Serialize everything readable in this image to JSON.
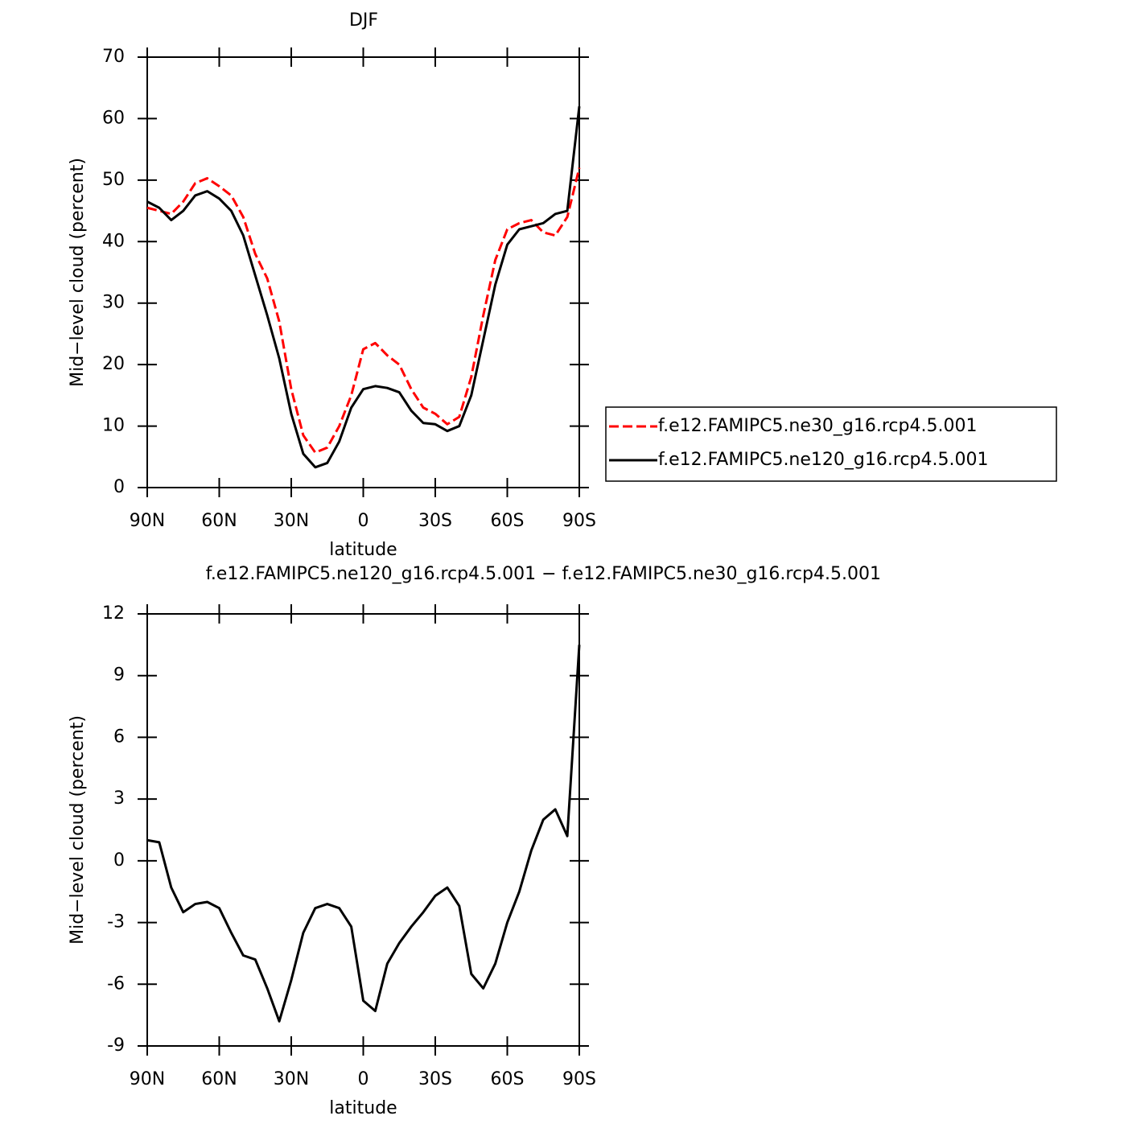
{
  "chart_data": [
    {
      "type": "line",
      "title": "DJF",
      "xlabel": "latitude",
      "ylabel": "Mid−level cloud (percent)",
      "x": [
        90,
        85,
        80,
        75,
        70,
        65,
        60,
        55,
        50,
        45,
        40,
        35,
        30,
        25,
        20,
        15,
        10,
        5,
        0,
        -5,
        -10,
        -15,
        -20,
        -25,
        -30,
        -35,
        -40,
        -45,
        -50,
        -55,
        -60,
        -65,
        -70,
        -75,
        -80,
        -85,
        -90
      ],
      "series": [
        {
          "name": "f.e12.FAMIPC5.ne30_g16.rcp4.5.001",
          "color": "#ff0000",
          "dash": true,
          "values": [
            45.5,
            45,
            44.5,
            46.5,
            49.5,
            50.3,
            49,
            47.5,
            44,
            38,
            34,
            27,
            16,
            8.5,
            5.7,
            6.5,
            10,
            15,
            22.5,
            23.5,
            21.5,
            20,
            16,
            13,
            12,
            10.3,
            11.5,
            18,
            28,
            37,
            42,
            43,
            43.5,
            41.5,
            41,
            44,
            52
          ]
        },
        {
          "name": "f.e12.FAMIPC5.ne120_g16.rcp4.5.001",
          "color": "#000000",
          "dash": false,
          "values": [
            46.5,
            45.5,
            43.5,
            45,
            47.5,
            48.2,
            47,
            45,
            41,
            34.5,
            28,
            21,
            12,
            5.5,
            3.3,
            4,
            7.5,
            13,
            16,
            16.5,
            16.2,
            15.5,
            12.5,
            10.5,
            10.3,
            9.2,
            10,
            15,
            24,
            33,
            39.5,
            42,
            42.5,
            43,
            44.5,
            45,
            62
          ]
        }
      ],
      "xlim": [
        90,
        -90
      ],
      "xticks": [
        {
          "value": 90,
          "label": "90N"
        },
        {
          "value": 60,
          "label": "60N"
        },
        {
          "value": 30,
          "label": "30N"
        },
        0,
        {
          "value": -30,
          "label": "30S"
        },
        {
          "value": -60,
          "label": "60S"
        },
        {
          "value": -90,
          "label": "90S"
        }
      ],
      "ylim": [
        0,
        70
      ],
      "yticks": [
        0,
        10,
        20,
        30,
        40,
        50,
        60,
        70
      ]
    },
    {
      "type": "line",
      "title": "f.e12.FAMIPC5.ne120_g16.rcp4.5.001 − f.e12.FAMIPC5.ne30_g16.rcp4.5.001",
      "xlabel": "latitude",
      "ylabel": "Mid−level cloud (percent)",
      "x": [
        90,
        85,
        80,
        75,
        70,
        65,
        60,
        55,
        50,
        45,
        40,
        35,
        30,
        25,
        20,
        15,
        10,
        5,
        0,
        -5,
        -10,
        -15,
        -20,
        -25,
        -30,
        -35,
        -40,
        -45,
        -50,
        -55,
        -60,
        -65,
        -70,
        -75,
        -80,
        -85,
        -90
      ],
      "series": [
        {
          "color": "#000000",
          "dash": false,
          "values": [
            1,
            0.9,
            -1.3,
            -2.5,
            -2.1,
            -2,
            -2.3,
            -3.5,
            -4.6,
            -4.8,
            -6.2,
            -7.8,
            -5.8,
            -3.5,
            -2.3,
            -2.1,
            -2.3,
            -3.2,
            -6.8,
            -7.3,
            -5,
            -4,
            -3.2,
            -2.5,
            -1.7,
            -1.3,
            -2.2,
            -5.5,
            -6.2,
            -5,
            -3,
            -1.5,
            0.5,
            2,
            2.5,
            1.2,
            10.5
          ]
        }
      ],
      "xlim": [
        90,
        -90
      ],
      "xticks": [
        {
          "value": 90,
          "label": "90N"
        },
        {
          "value": 60,
          "label": "60N"
        },
        {
          "value": 30,
          "label": "30N"
        },
        0,
        {
          "value": -30,
          "label": "30S"
        },
        {
          "value": -60,
          "label": "60S"
        },
        {
          "value": -90,
          "label": "90S"
        }
      ],
      "ylim": [
        -9,
        12
      ],
      "yticks": [
        -9,
        -6,
        -3,
        0,
        3,
        6,
        9,
        12
      ]
    }
  ]
}
